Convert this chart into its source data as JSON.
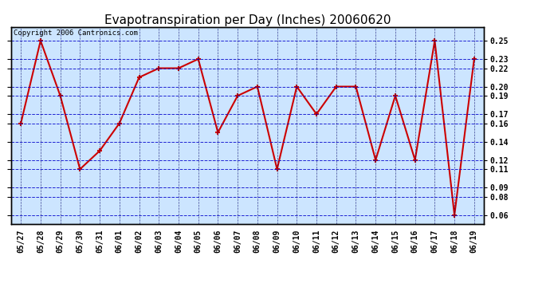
{
  "title": "Evapotranspiration per Day (Inches) 20060620",
  "copyright_text": "Copyright 2006 Cantronics.com",
  "labels": [
    "05/27",
    "05/28",
    "05/29",
    "05/30",
    "05/31",
    "06/01",
    "06/02",
    "06/03",
    "06/04",
    "06/05",
    "06/06",
    "06/07",
    "06/08",
    "06/09",
    "06/10",
    "06/11",
    "06/12",
    "06/13",
    "06/14",
    "06/15",
    "06/16",
    "06/17",
    "06/18",
    "06/19"
  ],
  "values": [
    0.16,
    0.25,
    0.19,
    0.11,
    0.13,
    0.16,
    0.21,
    0.22,
    0.22,
    0.23,
    0.15,
    0.19,
    0.2,
    0.11,
    0.2,
    0.17,
    0.2,
    0.2,
    0.12,
    0.19,
    0.12,
    0.25,
    0.06,
    0.23
  ],
  "line_color": "#cc0000",
  "marker_color": "#cc0000",
  "outer_bg_color": "#ffffff",
  "plot_bg_color": "#cce5ff",
  "grid_color_h": "#0000cc",
  "grid_color_v": "#000066",
  "title_fontsize": 11,
  "copyright_fontsize": 6.5,
  "tick_fontsize": 7,
  "ylim": [
    0.05,
    0.265
  ],
  "yticks": [
    0.06,
    0.08,
    0.09,
    0.11,
    0.12,
    0.14,
    0.16,
    0.17,
    0.19,
    0.2,
    0.22,
    0.23,
    0.25
  ]
}
